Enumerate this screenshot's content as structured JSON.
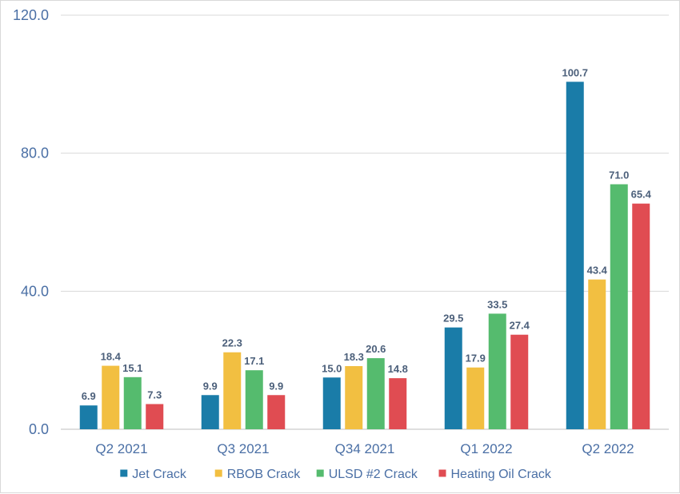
{
  "chart_data": {
    "type": "bar",
    "title": "",
    "xlabel": "",
    "ylabel": "",
    "ylim": [
      0,
      120
    ],
    "yticks": [
      0,
      40,
      80,
      120
    ],
    "ytick_labels": [
      "0.0",
      "40.0",
      "80.0",
      "120.0"
    ],
    "grid": true,
    "legend_position": "bottom",
    "categories": [
      "Q2 2021",
      "Q3 2021",
      "Q34 2021",
      "Q1 2022",
      "Q2 2022"
    ],
    "series": [
      {
        "name": "Jet Crack",
        "color": "#1a7ca8",
        "values": [
          6.9,
          9.9,
          15.0,
          29.5,
          100.7
        ],
        "labels": [
          "6.9",
          "9.9",
          "15.0",
          "29.5",
          "100.7"
        ]
      },
      {
        "name": "RBOB Crack",
        "color": "#f2bf41",
        "values": [
          18.4,
          22.3,
          18.3,
          17.9,
          43.4
        ],
        "labels": [
          "18.4",
          "22.3",
          "18.3",
          "17.9",
          "43.4"
        ]
      },
      {
        "name": "ULSD #2 Crack",
        "color": "#55bb6e",
        "values": [
          15.1,
          17.1,
          20.6,
          33.5,
          71.0
        ],
        "labels": [
          "15.1",
          "17.1",
          "20.6",
          "33.5",
          "71.0"
        ]
      },
      {
        "name": "Heating Oil Crack",
        "color": "#e04c52",
        "values": [
          7.3,
          9.9,
          14.8,
          27.4,
          65.4
        ],
        "labels": [
          "7.3",
          "9.9",
          "14.8",
          "27.4",
          "65.4"
        ]
      }
    ]
  }
}
